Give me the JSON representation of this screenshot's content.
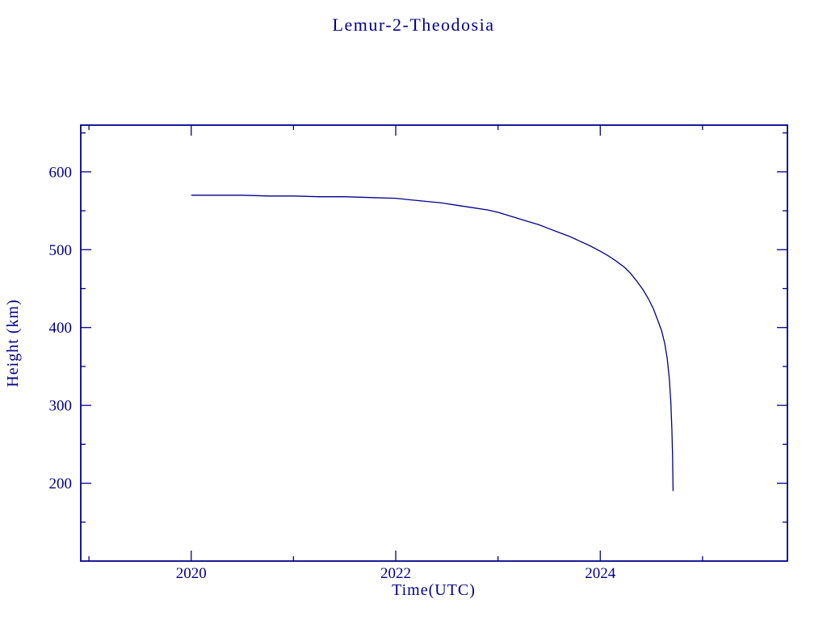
{
  "colors": {
    "accent": "#00008b",
    "background": "#ffffff"
  },
  "chart_data": {
    "type": "line",
    "title": "Lemur-2-Theodosia",
    "xlabel": "Time(UTC)",
    "ylabel": "Height (km)",
    "xlim": [
      2018.92,
      2025.83
    ],
    "ylim": [
      100,
      660
    ],
    "x_ticks_major": [
      2020,
      2022,
      2024
    ],
    "x_ticks_minor": [
      2019,
      2021,
      2023,
      2025
    ],
    "y_ticks_major": [
      200,
      300,
      400,
      500,
      600
    ],
    "y_ticks_minor": [
      150,
      250,
      350,
      450,
      550,
      650
    ],
    "grid": false,
    "legend": false,
    "line_color": "#00008b",
    "frame_color": "#00008b",
    "text_color": "#00008b",
    "series": [
      {
        "name": "Height (km)",
        "x": [
          2020.0,
          2020.25,
          2020.5,
          2020.75,
          2021.0,
          2021.25,
          2021.5,
          2021.75,
          2022.0,
          2022.15,
          2022.3,
          2022.45,
          2022.6,
          2022.75,
          2022.9,
          2023.0,
          2023.1,
          2023.2,
          2023.3,
          2023.4,
          2023.5,
          2023.6,
          2023.7,
          2023.8,
          2023.9,
          2024.0,
          2024.08,
          2024.16,
          2024.24,
          2024.3,
          2024.36,
          2024.42,
          2024.47,
          2024.52,
          2024.56,
          2024.6,
          2024.63,
          2024.655,
          2024.675,
          2024.69,
          2024.7,
          2024.707,
          2024.712
        ],
        "y": [
          570,
          570,
          570,
          569,
          569,
          568,
          568,
          567,
          566,
          564,
          562,
          560,
          557,
          554,
          551,
          548,
          544,
          540,
          536,
          532,
          527,
          522,
          517,
          511,
          505,
          498,
          492,
          485,
          477,
          469,
          459,
          448,
          437,
          424,
          410,
          396,
          380,
          360,
          335,
          305,
          270,
          235,
          190
        ]
      }
    ]
  }
}
